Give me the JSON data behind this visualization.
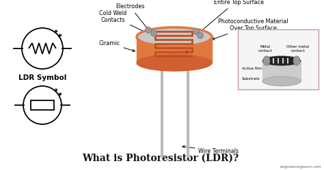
{
  "bg_color": "#ffffff",
  "title": "What is Photoresistor (LDR)?",
  "title_fontsize": 10,
  "title_color": "#111111",
  "watermark": "engineeringlearn.com",
  "ldr_symbol_label": "LDR Symbol",
  "labels": {
    "electrodes": "Electrodes",
    "clear_coating": "Clear Coating Over\nEntire Top Surface",
    "cold_weld": "Cold Weld\nContacts",
    "photoconductive": "Photoconductive Material\nOver Top Surface",
    "ciramic": "Ciramic",
    "wire_terminals": "Wire Terminals",
    "metal_contact": "Metal\ncontact",
    "other_metal": "Other metal\ncontact",
    "active_film": "Active film",
    "substrate": "Substrate"
  },
  "component_color": "#E07840",
  "component_side_color": "#D06030",
  "top_face_color": "#C8C8C8",
  "track_color": "#C05020",
  "wire_color": "#AAAAAA",
  "inset_bg": "#f8f8f8",
  "inset_border": "#ccaaaa",
  "symbol_bg": "#ffffff"
}
